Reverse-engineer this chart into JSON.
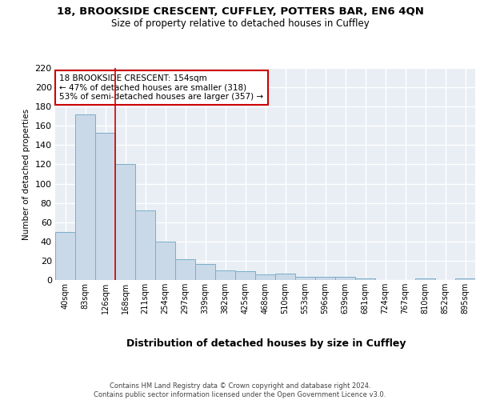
{
  "title_line1": "18, BROOKSIDE CRESCENT, CUFFLEY, POTTERS BAR, EN6 4QN",
  "title_line2": "Size of property relative to detached houses in Cuffley",
  "xlabel": "Distribution of detached houses by size in Cuffley",
  "ylabel": "Number of detached properties",
  "footnote": "Contains HM Land Registry data © Crown copyright and database right 2024.\nContains public sector information licensed under the Open Government Licence v3.0.",
  "categories": [
    "40sqm",
    "83sqm",
    "126sqm",
    "168sqm",
    "211sqm",
    "254sqm",
    "297sqm",
    "339sqm",
    "382sqm",
    "425sqm",
    "468sqm",
    "510sqm",
    "553sqm",
    "596sqm",
    "639sqm",
    "681sqm",
    "724sqm",
    "767sqm",
    "810sqm",
    "852sqm",
    "895sqm"
  ],
  "values": [
    50,
    172,
    153,
    120,
    72,
    40,
    22,
    17,
    10,
    9,
    6,
    7,
    3,
    3,
    3,
    2,
    0,
    0,
    2,
    0,
    2
  ],
  "bar_color": "#c9d9e8",
  "bar_edge_color": "#7aaec8",
  "annotation_text": "18 BROOKSIDE CRESCENT: 154sqm\n← 47% of detached houses are smaller (318)\n53% of semi-detached houses are larger (357) →",
  "annotation_box_color": "#ffffff",
  "annotation_box_edge_color": "#cc0000",
  "property_line_color": "#cc0000",
  "ylim": [
    0,
    220
  ],
  "yticks": [
    0,
    20,
    40,
    60,
    80,
    100,
    120,
    140,
    160,
    180,
    200,
    220
  ],
  "bg_color": "#e8eef4",
  "title_bg_color": "#ffffff",
  "grid_color": "#ffffff"
}
